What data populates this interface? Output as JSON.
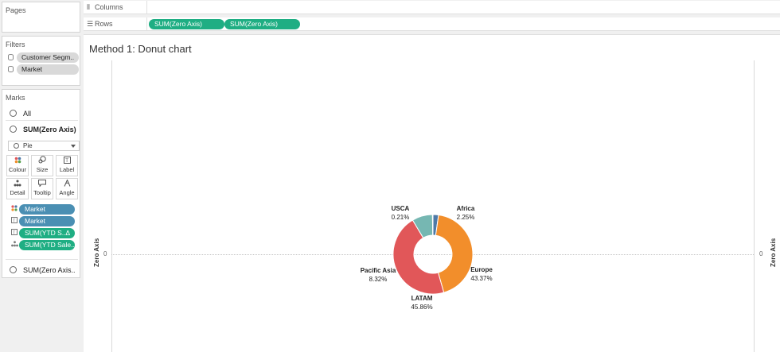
{
  "pages": {
    "title": "Pages"
  },
  "filters": {
    "title": "Filters",
    "items": [
      {
        "label": "Customer Segm.."
      },
      {
        "label": "Market"
      }
    ]
  },
  "marks": {
    "title": "Marks",
    "all_label": "All",
    "card_label": "SUM(Zero Axis)",
    "mark_type": "Pie",
    "buttons": [
      {
        "label": "Colour",
        "icon": "colour-icon"
      },
      {
        "label": "Size",
        "icon": "size-icon"
      },
      {
        "label": "Label",
        "icon": "label-icon"
      },
      {
        "label": "Detail",
        "icon": "detail-icon"
      },
      {
        "label": "Tooltip",
        "icon": "tooltip-icon"
      },
      {
        "label": "Angle",
        "icon": "angle-icon"
      }
    ],
    "fields": [
      {
        "label": "Market",
        "role": "colour",
        "color": "#4a8fb3"
      },
      {
        "label": "Market",
        "role": "label",
        "color": "#4a8fb3"
      },
      {
        "label": "SUM(YTD S..",
        "role": "label",
        "color": "#1fae83",
        "flag": "Δ"
      },
      {
        "label": "SUM(YTD Sale..",
        "role": "detail",
        "color": "#1fae83"
      }
    ],
    "second_card_label": "SUM(Zero Axis.."
  },
  "shelves": {
    "columns_label": "Columns",
    "rows_label": "Rows",
    "rows_pills": [
      "SUM(Zero Axis)",
      "SUM(Zero Axis)"
    ]
  },
  "view": {
    "title": "Method 1: Donut chart",
    "left_axis_label": "Zero Axis",
    "right_axis_label": "Zero Axis",
    "left_tick": "0",
    "right_tick": "0"
  },
  "chart_data": {
    "type": "pie",
    "subtype": "donut",
    "title": "Method 1: Donut chart",
    "slices": [
      {
        "name": "Africa",
        "value": 2.25,
        "label": "2.25%",
        "color": "#4e79a7"
      },
      {
        "name": "Europe",
        "value": 43.37,
        "label": "43.37%",
        "color": "#f28e2b"
      },
      {
        "name": "LATAM",
        "value": 45.86,
        "label": "45.86%",
        "color": "#e15759"
      },
      {
        "name": "Pacific Asia",
        "value": 8.32,
        "label": "8.32%",
        "color": "#76b7b2"
      },
      {
        "name": "USCA",
        "value": 0.21,
        "label": "0.21%",
        "color": "#59a14f"
      }
    ]
  }
}
